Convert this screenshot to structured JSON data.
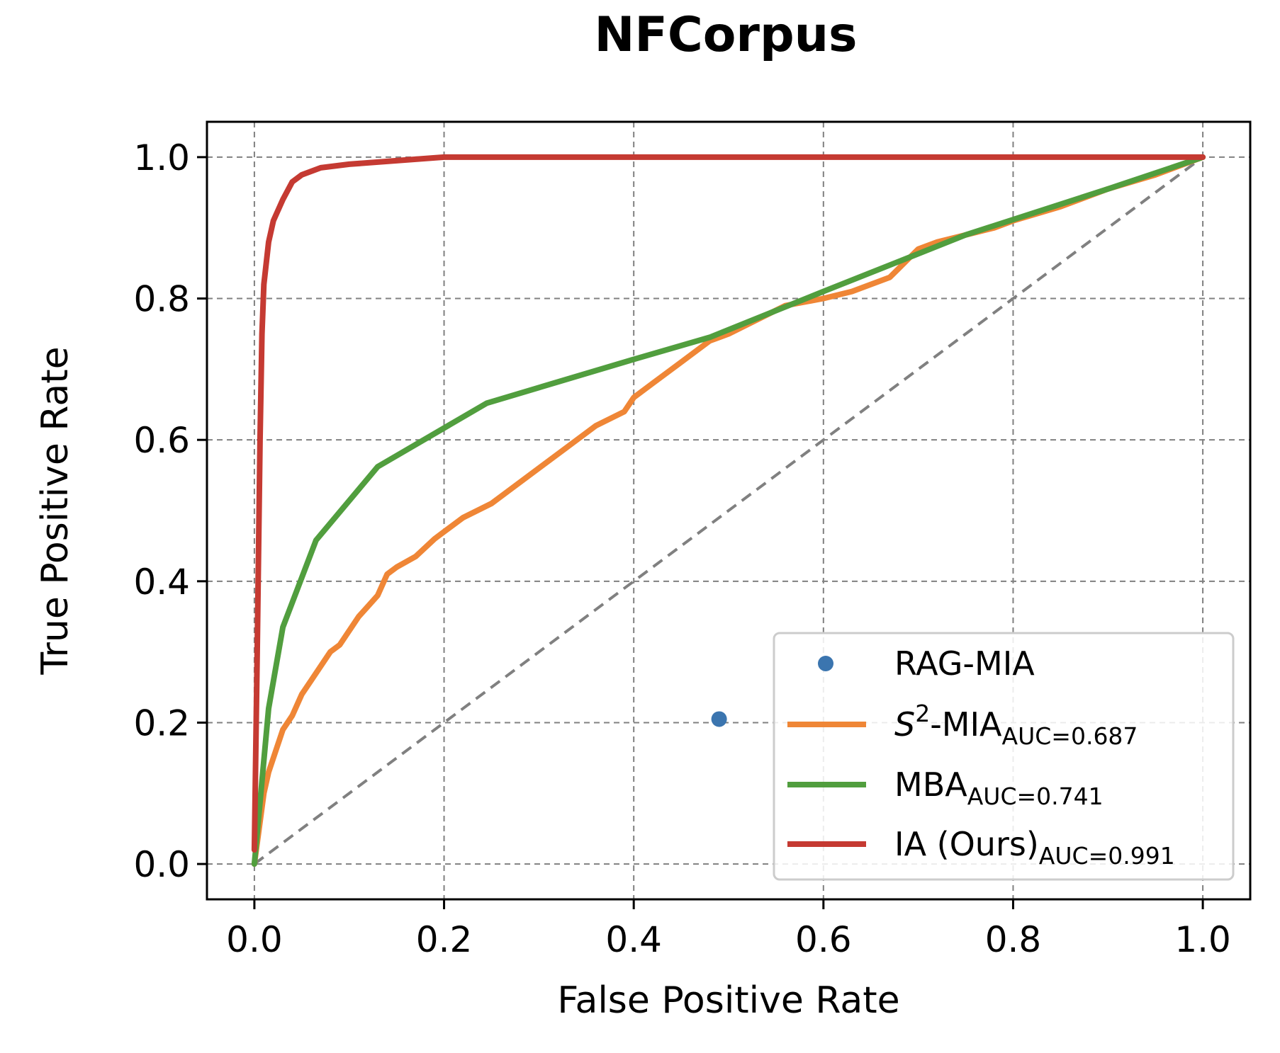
{
  "chart_data": {
    "type": "line",
    "title": "NFCorpus",
    "xlabel": "False Positive Rate",
    "ylabel": "True Positive Rate",
    "xlim": [
      -0.05,
      1.05
    ],
    "ylim": [
      -0.05,
      1.05
    ],
    "xticks": [
      "0.0",
      "0.2",
      "0.4",
      "0.6",
      "0.8",
      "1.0"
    ],
    "yticks": [
      "0.0",
      "0.2",
      "0.4",
      "0.6",
      "0.8",
      "1.0"
    ],
    "grid": true,
    "legend_position": "lower right",
    "diagonal_reference": {
      "x": [
        0,
        1
      ],
      "y": [
        0,
        1
      ],
      "color": "#808080",
      "style": "dashed"
    },
    "series": [
      {
        "name": "RAG-MIA",
        "kind": "point",
        "color": "#3b75af",
        "x": [
          0.49
        ],
        "y": [
          0.205
        ]
      },
      {
        "name": "S",
        "name_sup": "2",
        "name_suffix": "-MIA",
        "auc_label": "AUC=0.687",
        "kind": "line",
        "color": "#ef8636",
        "x": [
          0.0,
          0.01,
          0.015,
          0.02,
          0.03,
          0.04,
          0.05,
          0.06,
          0.07,
          0.08,
          0.09,
          0.1,
          0.11,
          0.12,
          0.13,
          0.14,
          0.15,
          0.17,
          0.19,
          0.2,
          0.22,
          0.25,
          0.27,
          0.3,
          0.33,
          0.36,
          0.39,
          0.4,
          0.42,
          0.45,
          0.48,
          0.5,
          0.53,
          0.56,
          0.6,
          0.63,
          0.67,
          0.7,
          0.72,
          0.75,
          0.78,
          0.8,
          0.85,
          0.9,
          0.95,
          1.0
        ],
        "y": [
          0.0,
          0.1,
          0.13,
          0.15,
          0.19,
          0.21,
          0.24,
          0.26,
          0.28,
          0.3,
          0.31,
          0.33,
          0.35,
          0.365,
          0.38,
          0.41,
          0.42,
          0.435,
          0.46,
          0.47,
          0.49,
          0.51,
          0.53,
          0.56,
          0.59,
          0.62,
          0.64,
          0.66,
          0.68,
          0.71,
          0.74,
          0.75,
          0.77,
          0.79,
          0.8,
          0.81,
          0.83,
          0.87,
          0.88,
          0.89,
          0.9,
          0.91,
          0.93,
          0.955,
          0.975,
          1.0
        ]
      },
      {
        "name": "MBA",
        "auc_label": "AUC=0.741",
        "kind": "line",
        "color": "#519e3e",
        "x": [
          0.0,
          0.015,
          0.03,
          0.065,
          0.13,
          0.245,
          0.4,
          0.48,
          0.6,
          0.75,
          0.9,
          1.0
        ],
        "y": [
          0.0,
          0.22,
          0.335,
          0.458,
          0.562,
          0.652,
          0.714,
          0.745,
          0.81,
          0.89,
          0.955,
          1.0
        ]
      },
      {
        "name": "IA (Ours)",
        "auc_label": "AUC=0.991",
        "kind": "line",
        "color": "#c53a32",
        "x": [
          0.0,
          0.003,
          0.006,
          0.008,
          0.01,
          0.015,
          0.02,
          0.03,
          0.04,
          0.05,
          0.07,
          0.1,
          0.15,
          0.2,
          0.4,
          0.6,
          1.0
        ],
        "y": [
          0.02,
          0.3,
          0.6,
          0.75,
          0.82,
          0.88,
          0.91,
          0.94,
          0.965,
          0.975,
          0.985,
          0.99,
          0.995,
          1.0,
          1.0,
          1.0,
          1.0
        ]
      }
    ]
  }
}
